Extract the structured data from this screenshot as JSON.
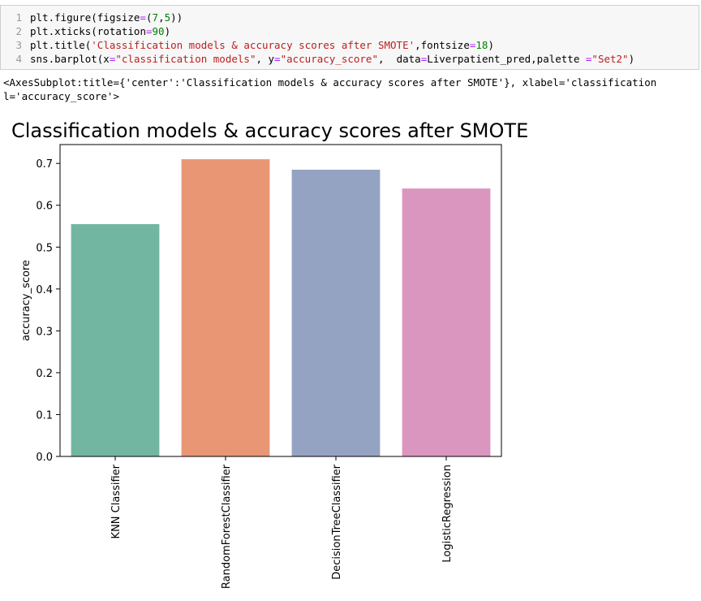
{
  "code": {
    "lines": [
      {
        "number": 1,
        "text": "plt.figure(figsize=(7,5))"
      },
      {
        "number": 2,
        "text": "plt.xticks(rotation=90)"
      },
      {
        "number": 3,
        "text": "plt.title('Classification models & accuracy scores after SMOTE',fontsize=18)"
      },
      {
        "number": 4,
        "text": "sns.barplot(x=\"classification models\", y=\"accuracy_score\",  data=Liverpatient_pred,palette =\"Set2\")"
      }
    ]
  },
  "output": {
    "lines": [
      "<AxesSubplot:title={'center':'Classification models & accuracy scores after SMOTE'}, xlabel='classification",
      "l='accuracy_score'>"
    ]
  },
  "chart_data": {
    "type": "bar",
    "title": "Classification models & accuracy scores after SMOTE",
    "y_label": "accuracy_score",
    "categories": [
      "KNN Classifier",
      "RandomForestClassifier",
      "DecisionTreeClassifier",
      "LogisticRegression"
    ],
    "values": [
      0.555,
      0.71,
      0.685,
      0.64
    ],
    "colors": [
      "#72b6a1",
      "#e99675",
      "#95a3c3",
      "#db96c0"
    ],
    "ylim": [
      0,
      0.745
    ],
    "yticks": [
      {
        "value": 0,
        "label": "0.0"
      },
      0.1,
      0.2,
      0.3,
      0.4,
      0.5,
      0.6,
      0.7
    ],
    "grid": false
  }
}
